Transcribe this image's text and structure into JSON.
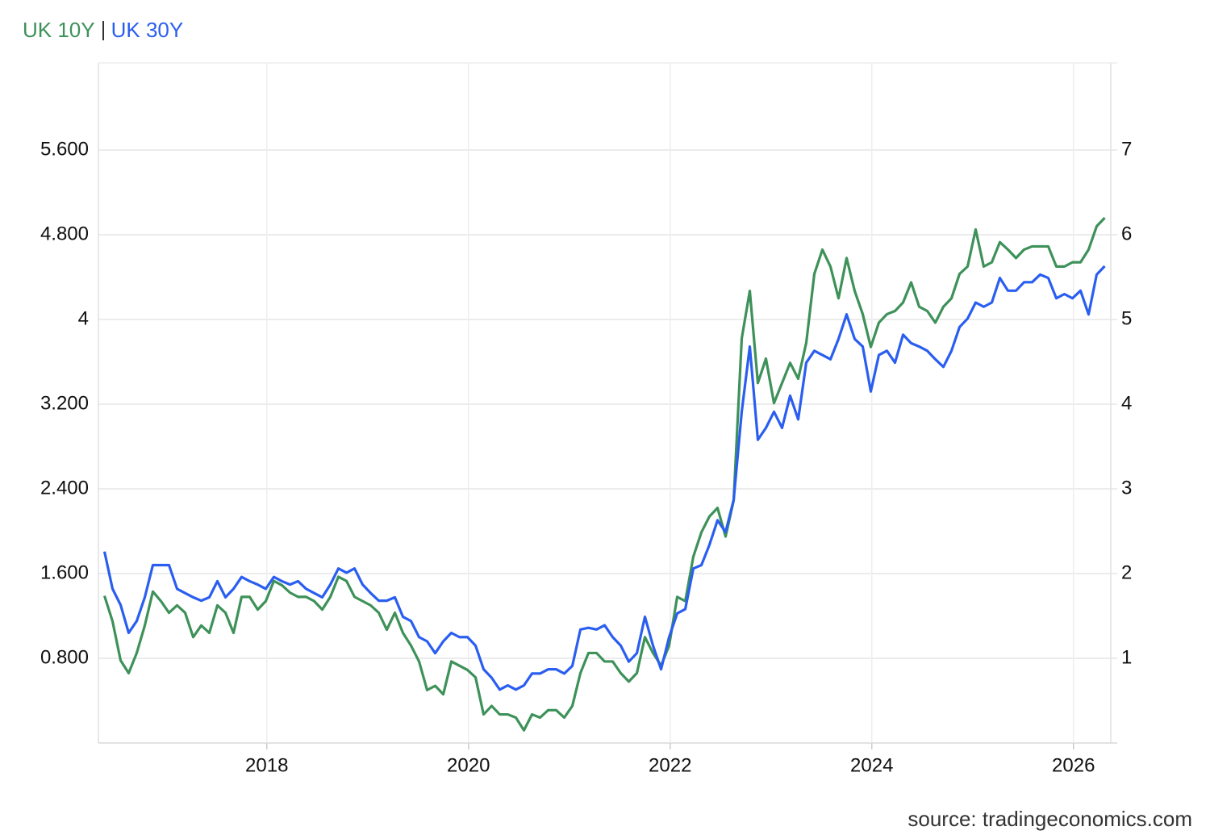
{
  "chart_data": {
    "type": "line",
    "x": [
      2016.39,
      2016.47,
      2016.55,
      2016.63,
      2016.71,
      2016.79,
      2016.87,
      2016.95,
      2017.03,
      2017.11,
      2017.19,
      2017.27,
      2017.35,
      2017.43,
      2017.51,
      2017.59,
      2017.67,
      2017.75,
      2017.83,
      2017.91,
      2017.99,
      2018.07,
      2018.15,
      2018.23,
      2018.31,
      2018.39,
      2018.47,
      2018.55,
      2018.63,
      2018.71,
      2018.79,
      2018.87,
      2018.95,
      2019.03,
      2019.11,
      2019.19,
      2019.27,
      2019.35,
      2019.43,
      2019.51,
      2019.59,
      2019.67,
      2019.75,
      2019.83,
      2019.91,
      2019.99,
      2020.07,
      2020.15,
      2020.23,
      2020.31,
      2020.39,
      2020.47,
      2020.55,
      2020.63,
      2020.71,
      2020.79,
      2020.87,
      2020.95,
      2021.03,
      2021.11,
      2021.19,
      2021.27,
      2021.35,
      2021.43,
      2021.51,
      2021.59,
      2021.67,
      2021.75,
      2021.83,
      2021.91,
      2021.99,
      2022.07,
      2022.15,
      2022.23,
      2022.31,
      2022.39,
      2022.47,
      2022.55,
      2022.63,
      2022.71,
      2022.79,
      2022.87,
      2022.95,
      2023.03,
      2023.11,
      2023.19,
      2023.27,
      2023.35,
      2023.43,
      2023.51,
      2023.59,
      2023.67,
      2023.75,
      2023.83,
      2023.91,
      2023.99,
      2024.07,
      2024.15,
      2024.23,
      2024.31,
      2024.39,
      2024.47,
      2024.55,
      2024.63,
      2024.71,
      2024.79,
      2024.87,
      2024.95,
      2025.03,
      2025.11,
      2025.19,
      2025.27,
      2025.35,
      2025.43,
      2025.51,
      2025.59,
      2025.67,
      2025.75,
      2025.83,
      2025.91,
      2025.99,
      2026.07,
      2026.15,
      2026.23,
      2026.31
    ],
    "series": [
      {
        "name": "UK 10Y",
        "color": "#3d9159",
        "axis": "y",
        "values": [
          1.39,
          1.15,
          0.78,
          0.66,
          0.85,
          1.11,
          1.43,
          1.34,
          1.23,
          1.3,
          1.23,
          1.0,
          1.11,
          1.04,
          1.3,
          1.23,
          1.04,
          1.38,
          1.38,
          1.26,
          1.34,
          1.53,
          1.49,
          1.42,
          1.38,
          1.38,
          1.34,
          1.26,
          1.38,
          1.57,
          1.53,
          1.38,
          1.34,
          1.3,
          1.23,
          1.07,
          1.23,
          1.04,
          0.92,
          0.77,
          0.5,
          0.54,
          0.46,
          0.77,
          0.73,
          0.69,
          0.62,
          0.27,
          0.35,
          0.27,
          0.27,
          0.24,
          0.12,
          0.27,
          0.24,
          0.31,
          0.31,
          0.24,
          0.35,
          0.66,
          0.85,
          0.85,
          0.77,
          0.77,
          0.66,
          0.58,
          0.66,
          1.0,
          0.85,
          0.73,
          0.92,
          1.38,
          1.34,
          1.76,
          1.99,
          2.14,
          2.22,
          1.95,
          2.29,
          3.82,
          4.27,
          3.4,
          3.63,
          3.21,
          3.4,
          3.59,
          3.44,
          3.78,
          4.43,
          4.66,
          4.5,
          4.2,
          4.58,
          4.27,
          4.05,
          3.74,
          3.97,
          4.05,
          4.08,
          4.16,
          4.35,
          4.12,
          4.08,
          3.97,
          4.12,
          4.2,
          4.43,
          4.5,
          4.85,
          4.5,
          4.54,
          4.73,
          4.66,
          4.58,
          4.66,
          4.69,
          4.69,
          4.69,
          4.5,
          4.5,
          4.54,
          4.54,
          4.66,
          4.88,
          4.96
        ]
      },
      {
        "name": "UK 30Y",
        "color": "#2a5ef0",
        "axis": "y2",
        "values": [
          2.26,
          1.82,
          1.63,
          1.3,
          1.44,
          1.72,
          2.1,
          2.1,
          2.1,
          1.82,
          1.77,
          1.72,
          1.68,
          1.72,
          1.91,
          1.72,
          1.82,
          1.96,
          1.91,
          1.87,
          1.82,
          1.96,
          1.91,
          1.87,
          1.91,
          1.82,
          1.77,
          1.72,
          1.87,
          2.06,
          2.01,
          2.06,
          1.87,
          1.77,
          1.68,
          1.68,
          1.72,
          1.49,
          1.44,
          1.25,
          1.2,
          1.06,
          1.2,
          1.3,
          1.25,
          1.25,
          1.15,
          0.87,
          0.77,
          0.63,
          0.68,
          0.63,
          0.68,
          0.82,
          0.82,
          0.87,
          0.87,
          0.82,
          0.91,
          1.34,
          1.36,
          1.34,
          1.39,
          1.25,
          1.15,
          0.96,
          1.06,
          1.49,
          1.15,
          0.87,
          1.25,
          1.53,
          1.58,
          2.06,
          2.1,
          2.34,
          2.63,
          2.49,
          2.87,
          3.91,
          4.68,
          3.58,
          3.72,
          3.91,
          3.72,
          4.1,
          3.82,
          4.49,
          4.63,
          4.58,
          4.53,
          4.77,
          5.06,
          4.77,
          4.68,
          4.15,
          4.58,
          4.63,
          4.49,
          4.82,
          4.72,
          4.68,
          4.63,
          4.53,
          4.44,
          4.63,
          4.91,
          5.01,
          5.2,
          5.15,
          5.2,
          5.49,
          5.34,
          5.34,
          5.44,
          5.44,
          5.53,
          5.49,
          5.25,
          5.3,
          5.25,
          5.34,
          5.06,
          5.53,
          5.63
        ]
      }
    ],
    "xlim": [
      2016.33,
      2026.37
    ],
    "xticks": [
      2018,
      2020,
      2022,
      2024,
      2026
    ],
    "ylim": [
      0,
      6.4
    ],
    "yticks": [
      {
        "value": 0.8,
        "label": "0.800"
      },
      {
        "value": 1.6,
        "label": "1.600"
      },
      {
        "value": 2.4,
        "label": "2.400"
      },
      {
        "value": 3.2,
        "label": "3.200"
      },
      4,
      {
        "value": 4.8,
        "label": "4.800"
      },
      {
        "value": 5.6,
        "label": "5.600"
      }
    ],
    "y2lim": [
      0,
      8
    ],
    "y2ticks": [
      1,
      2,
      3,
      4,
      5,
      6,
      7
    ],
    "grid": true,
    "source": "source: tradingeconomics.com"
  }
}
